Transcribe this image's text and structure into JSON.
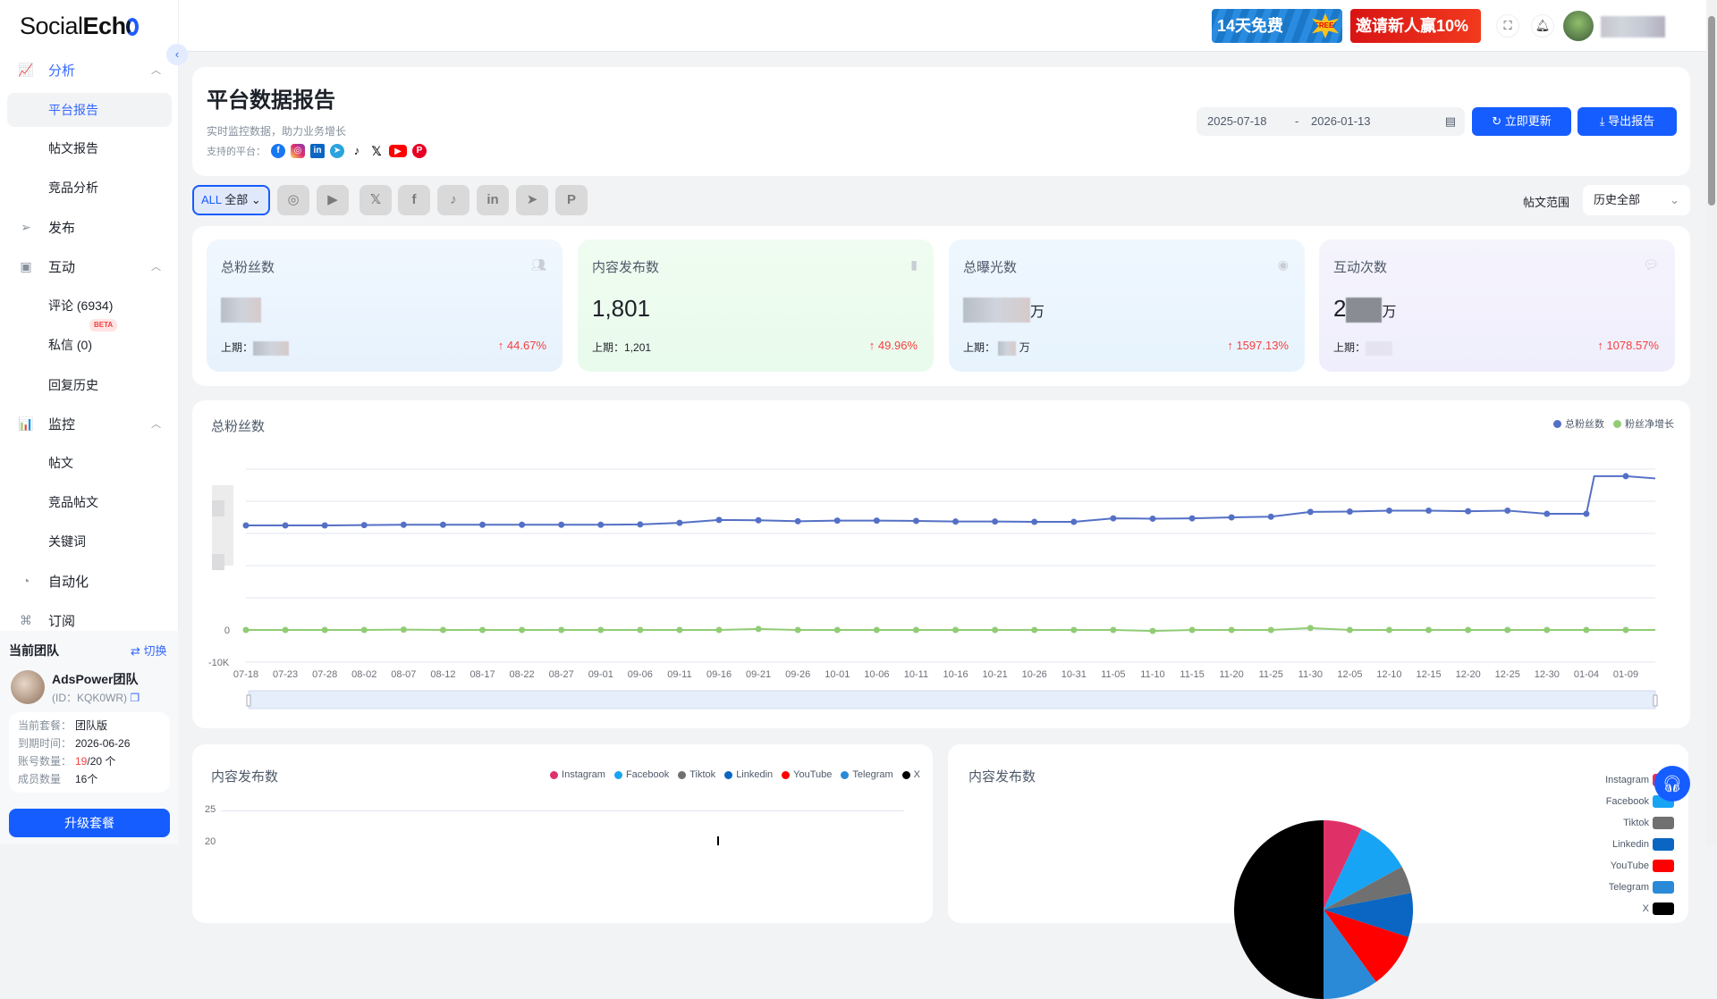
{
  "app": {
    "logo": "SocialEcho"
  },
  "sidebar": {
    "groups": [
      {
        "label": "分析",
        "icon": "chart-icon"
      },
      {
        "label": "发布",
        "icon": "send-icon"
      },
      {
        "label": "互动",
        "icon": "message-icon"
      },
      {
        "label": "监控",
        "icon": "monitor-icon"
      },
      {
        "label": "自动化",
        "icon": "automation-icon"
      },
      {
        "label": "订阅",
        "icon": "ticket-icon"
      }
    ],
    "items": {
      "analysis": [
        "平台报告",
        "帖文报告",
        "竞品分析"
      ],
      "interaction": [
        "评论 (6934)",
        "私信 (0)",
        "回复历史"
      ],
      "monitor": [
        "帖文",
        "竞品帖文",
        "关键词"
      ]
    },
    "beta": "BETA",
    "team": {
      "heading": "当前团队",
      "switch": "⇄ 切换",
      "name": "AdsPower团队",
      "id": "(ID：KQK0WR)",
      "plan_k": "当前套餐：",
      "plan": "团队版",
      "exp_k": "到期时间：",
      "exp": "2026-06-26",
      "acc_k": "账号数量：",
      "acc_used": "19",
      "acc_total": "/20 个",
      "mem_k": "成员数量",
      "mem": "16个",
      "upgrade": "升级套餐"
    }
  },
  "topbar": {
    "ad1": "14天免费",
    "ad1_badge": "FREE!",
    "ad2": "邀请新人赢10%"
  },
  "header": {
    "title": "平台数据报告",
    "subtitle": "实时监控数据，助力业务增长",
    "supported": "支持的平台：",
    "date_start": "2025-07-18",
    "date_sep": "-",
    "date_end": "2026-01-13",
    "refresh": "立即更新",
    "export": "导出报告"
  },
  "filters": {
    "all": "ALL",
    "all_cn": "全部",
    "platforms": [
      "instagram",
      "youtube",
      "x",
      "facebook",
      "tiktok",
      "linkedin",
      "telegram",
      "pinterest"
    ],
    "range_label": "帖文范围",
    "range_value": "历史全部"
  },
  "stats": [
    {
      "title": "总粉丝数",
      "icon": "users-icon",
      "prev_label": "上期：",
      "change": "↑ 44.67%",
      "bg": "#eaf3fd"
    },
    {
      "title": "内容发布数",
      "icon": "document-icon",
      "value": "1,801",
      "prev_label": "上期：",
      "prev": "1,201",
      "change": "↑ 49.96%",
      "bg": "#ebfbee"
    },
    {
      "title": "总曝光数",
      "icon": "eye-icon",
      "unit": "万",
      "prev_label": "上期：",
      "prev_unit": "万",
      "change": "↑ 1597.13%",
      "bg": "#e8f3fd"
    },
    {
      "title": "互动次数",
      "icon": "chat-icon",
      "value_prefix": "2",
      "unit": "万",
      "prev_label": "上期：",
      "change": "↑ 1078.57%",
      "bg": "#f0effc"
    }
  ],
  "colors": {
    "primary": "#165dff",
    "blue_series": "#5470c6",
    "green_series": "#91cc75",
    "up": "#f53f3f"
  },
  "chart_data": [
    {
      "type": "line",
      "title": "总粉丝数",
      "ylim": [
        -10000,
        50000
      ],
      "yticks_visible": [
        "0",
        "-10K"
      ],
      "legend": "top-right",
      "grid": true,
      "x": [
        "07-18",
        "07-23",
        "07-28",
        "08-02",
        "08-07",
        "08-12",
        "08-17",
        "08-22",
        "08-27",
        "09-01",
        "09-06",
        "09-11",
        "09-16",
        "09-21",
        "09-26",
        "10-01",
        "10-06",
        "10-11",
        "10-16",
        "10-21",
        "10-26",
        "10-31",
        "11-05",
        "11-10",
        "11-15",
        "11-20",
        "11-25",
        "11-30",
        "12-05",
        "12-10",
        "12-15",
        "12-20",
        "12-25",
        "12-30",
        "01-04",
        "01-09"
      ],
      "series": [
        {
          "name": "总粉丝数",
          "color": "#5470c6",
          "values": [
            32500,
            32500,
            32500,
            32600,
            32700,
            32700,
            32700,
            32700,
            32700,
            32700,
            32800,
            33300,
            34200,
            34100,
            33800,
            34000,
            34000,
            33900,
            33700,
            33700,
            33600,
            33600,
            34700,
            34600,
            34700,
            35000,
            35200,
            36700,
            36800,
            37100,
            37100,
            36900,
            37100,
            36100,
            36100,
            47800
          ]
        },
        {
          "name": "粉丝净增长",
          "color": "#91cc75",
          "values": [
            0,
            0,
            0,
            0,
            100,
            0,
            0,
            0,
            0,
            0,
            0,
            0,
            0,
            300,
            0,
            0,
            0,
            0,
            0,
            0,
            0,
            0,
            0,
            -300,
            0,
            0,
            0,
            600,
            0,
            0,
            0,
            0,
            0,
            0,
            0,
            0
          ]
        }
      ]
    },
    {
      "type": "line",
      "title": "内容发布数",
      "yticks": [
        25,
        20
      ],
      "legend": "top-right",
      "series": [
        {
          "name": "Instagram",
          "color": "#e03068"
        },
        {
          "name": "Facebook",
          "color": "#18a4f5"
        },
        {
          "name": "Tiktok",
          "color": "#707070"
        },
        {
          "name": "Linkedin",
          "color": "#0a66c2"
        },
        {
          "name": "YouTube",
          "color": "#ff0000"
        },
        {
          "name": "Telegram",
          "color": "#2a8ad8"
        },
        {
          "name": "X",
          "color": "#000000"
        }
      ]
    },
    {
      "type": "pie",
      "title": "内容发布数",
      "legend": "right",
      "slices": [
        {
          "name": "Instagram",
          "color": "#e03068",
          "value": 7
        },
        {
          "name": "Facebook",
          "color": "#18a4f5",
          "value": 10
        },
        {
          "name": "Tiktok",
          "color": "#707070",
          "value": 5
        },
        {
          "name": "Linkedin",
          "color": "#0a66c2",
          "value": 8
        },
        {
          "name": "YouTube",
          "color": "#ff0000",
          "value": 10
        },
        {
          "name": "Telegram",
          "color": "#2a8ad8",
          "value": 10
        },
        {
          "name": "X",
          "color": "#000000",
          "value": 50
        }
      ]
    }
  ]
}
